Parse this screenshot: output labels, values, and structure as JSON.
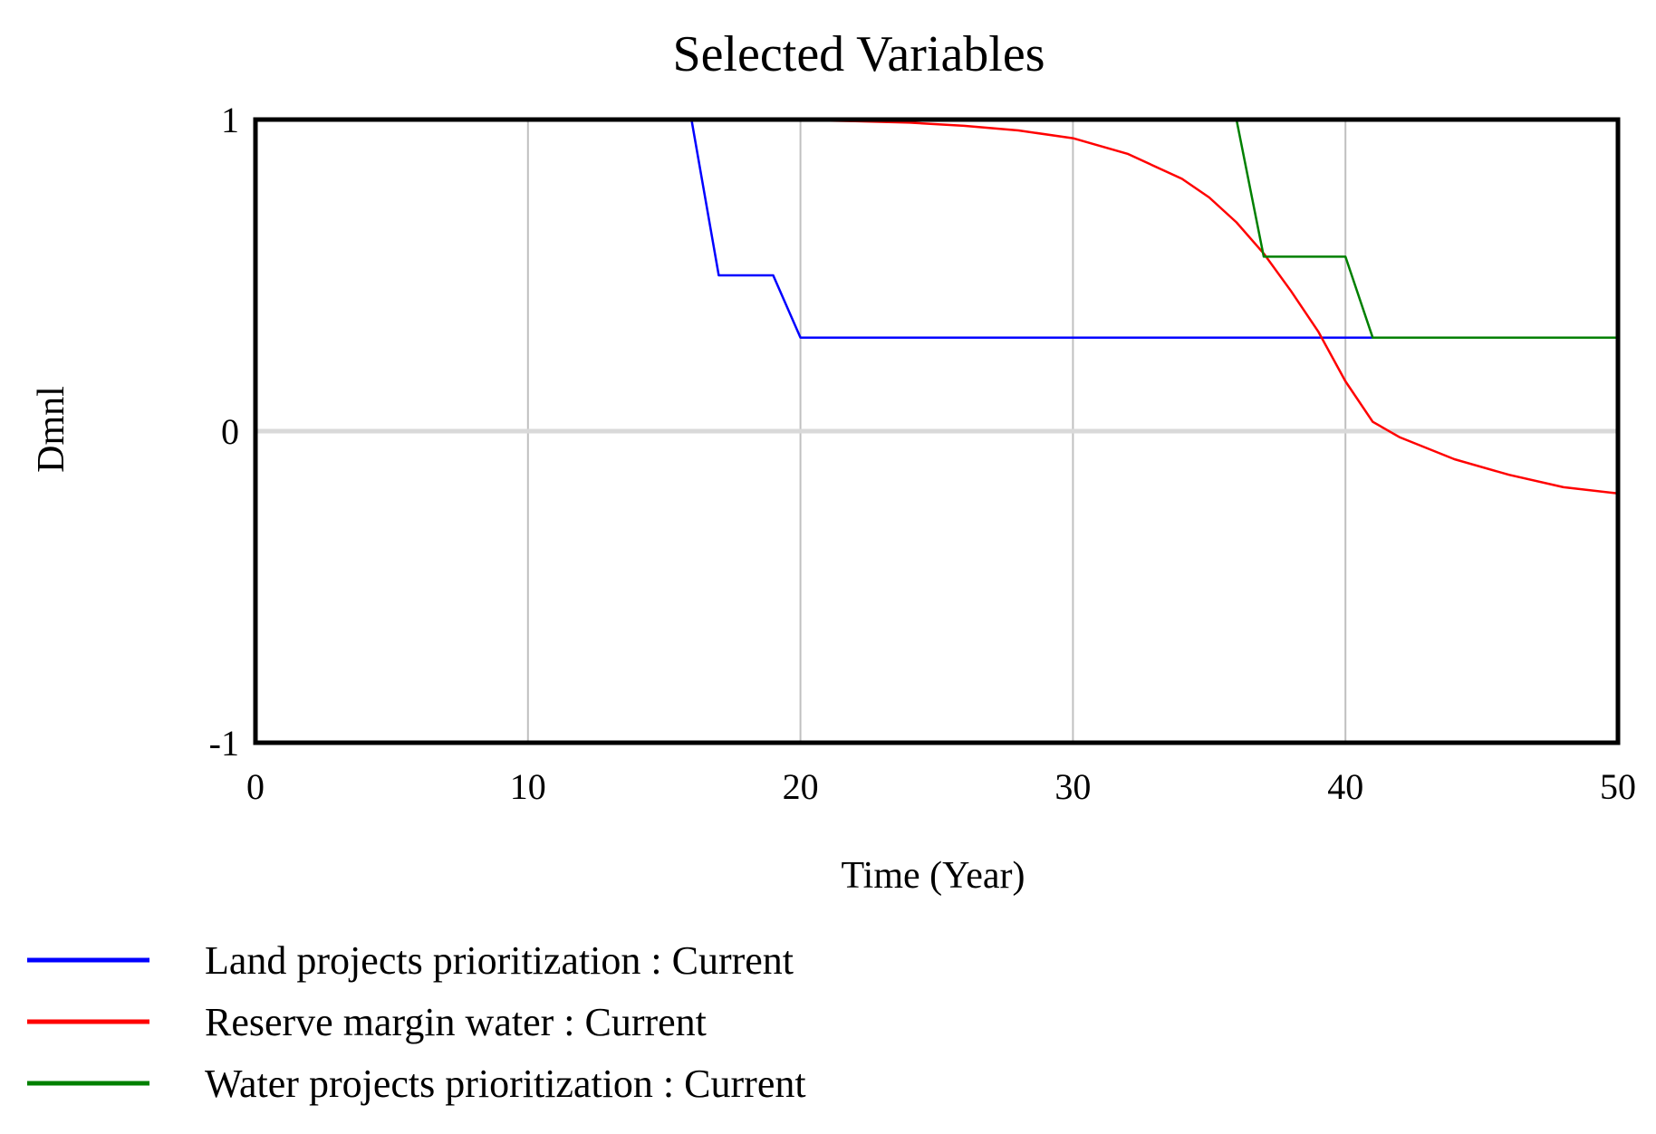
{
  "chart_data": {
    "type": "line",
    "title": "Selected Variables",
    "xlabel": "Time (Year)",
    "ylabel": "Dmnl",
    "xlim": [
      0,
      50
    ],
    "ylim": [
      -1,
      1
    ],
    "x_ticks": [
      0,
      10,
      20,
      30,
      40,
      50
    ],
    "y_ticks": [
      -1,
      0,
      1
    ],
    "x_tick_labels": [
      "0",
      "10",
      "20",
      "30",
      "40",
      "50"
    ],
    "y_tick_labels": [
      "-1",
      "0",
      "1"
    ],
    "grid": true,
    "legend_position": "bottom-left",
    "series": [
      {
        "name": "Land projects prioritization : Current",
        "color": "#0000ff",
        "x": [
          0,
          16,
          17,
          19,
          20,
          50
        ],
        "y": [
          1,
          1,
          0.5,
          0.5,
          0.3,
          0.3
        ]
      },
      {
        "name": "Reserve margin water : Current",
        "color": "#ff0000",
        "x": [
          0,
          18,
          20,
          22,
          24,
          26,
          28,
          30,
          32,
          34,
          35,
          36,
          37,
          38,
          39,
          40,
          41,
          42,
          44,
          46,
          48,
          50
        ],
        "y": [
          1,
          1,
          0.998,
          0.995,
          0.99,
          0.98,
          0.965,
          0.94,
          0.89,
          0.81,
          0.75,
          0.67,
          0.57,
          0.45,
          0.32,
          0.16,
          0.03,
          -0.02,
          -0.09,
          -0.14,
          -0.18,
          -0.2
        ]
      },
      {
        "name": "Water projects prioritization : Current",
        "color": "#008000",
        "x": [
          0,
          36,
          37,
          40,
          41,
          50
        ],
        "y": [
          1,
          1,
          0.56,
          0.56,
          0.3,
          0.3
        ]
      }
    ]
  }
}
